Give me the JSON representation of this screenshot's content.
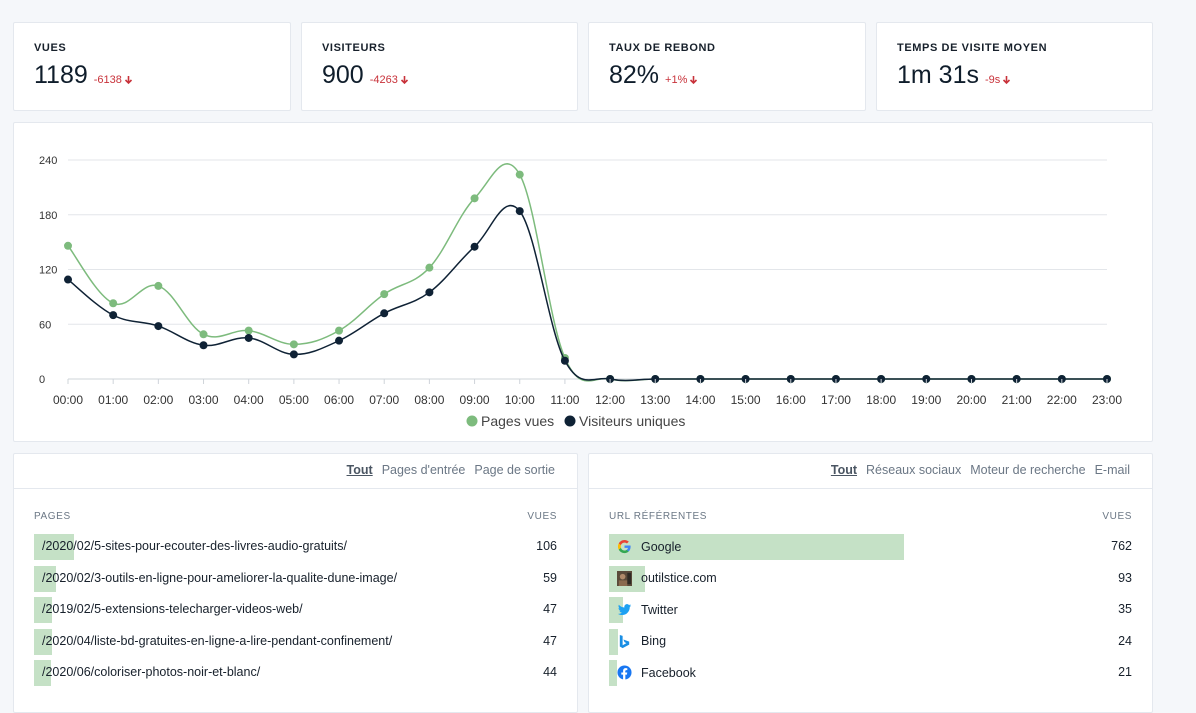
{
  "stats": [
    {
      "label": "VUES",
      "value": "1189",
      "change": "-6138"
    },
    {
      "label": "VISITEURS",
      "value": "900",
      "change": "-4263"
    },
    {
      "label": "TAUX DE REBOND",
      "value": "82%",
      "change": "+1%"
    },
    {
      "label": "TEMPS DE VISITE MOYEN",
      "value": "1m 31s",
      "change": "-9s"
    }
  ],
  "colors": {
    "pages_vues": "#7dbb7d",
    "visiteurs": "#0f2235",
    "decrease": "#c8323a",
    "bar_fill": "#c5e1c6"
  },
  "chart_data": {
    "type": "line",
    "x": [
      "00:00",
      "01:00",
      "02:00",
      "03:00",
      "04:00",
      "05:00",
      "06:00",
      "07:00",
      "08:00",
      "09:00",
      "10:00",
      "11:00",
      "12:00",
      "13:00",
      "14:00",
      "15:00",
      "16:00",
      "17:00",
      "18:00",
      "19:00",
      "20:00",
      "21:00",
      "22:00",
      "23:00"
    ],
    "series": [
      {
        "name": "Pages vues",
        "values": [
          146,
          83,
          102,
          49,
          53,
          38,
          53,
          93,
          122,
          198,
          224,
          23,
          0,
          0,
          0,
          0,
          0,
          0,
          0,
          0,
          0,
          0,
          0,
          0
        ]
      },
      {
        "name": "Visiteurs uniques",
        "values": [
          109,
          70,
          58,
          37,
          45,
          27,
          42,
          72,
          95,
          145,
          184,
          20,
          0,
          0,
          0,
          0,
          0,
          0,
          0,
          0,
          0,
          0,
          0,
          0
        ]
      }
    ],
    "yticks": [
      0,
      60,
      120,
      180,
      240
    ],
    "ylim": [
      0,
      240
    ],
    "grid": true,
    "legend": "bottom-center"
  },
  "pages_panel": {
    "tabs": [
      "Tout",
      "Pages d'entrée",
      "Page de sortie"
    ],
    "col_label": "PAGES",
    "col_value": "VUES",
    "rows": [
      {
        "label": "/2020/02/5-sites-pour-ecouter-des-livres-audio-gratuits/",
        "value": "106",
        "fraction": 0.077
      },
      {
        "label": "/2020/02/3-outils-en-ligne-pour-ameliorer-la-qualite-dune-image/",
        "value": "59",
        "fraction": 0.043
      },
      {
        "label": "/2019/02/5-extensions-telecharger-videos-web/",
        "value": "47",
        "fraction": 0.034
      },
      {
        "label": "/2020/04/liste-bd-gratuites-en-ligne-a-lire-pendant-confinement/",
        "value": "47",
        "fraction": 0.034
      },
      {
        "label": "/2020/06/coloriser-photos-noir-et-blanc/",
        "value": "44",
        "fraction": 0.032
      }
    ]
  },
  "referrers_panel": {
    "tabs": [
      "Tout",
      "Réseaux sociaux",
      "Moteur de recherche",
      "E-mail"
    ],
    "col_label": "URL RÉFÉRENTES",
    "col_value": "VUES",
    "rows": [
      {
        "label": "Google",
        "value": "762",
        "icon": "google-icon",
        "fraction": 0.565
      },
      {
        "label": "outilstice.com",
        "value": "93",
        "icon": "site-thumbnail-icon",
        "fraction": 0.069
      },
      {
        "label": "Twitter",
        "value": "35",
        "icon": "twitter-icon",
        "fraction": 0.026
      },
      {
        "label": "Bing",
        "value": "24",
        "icon": "bing-icon",
        "fraction": 0.018
      },
      {
        "label": "Facebook",
        "value": "21",
        "icon": "facebook-icon",
        "fraction": 0.016
      }
    ]
  }
}
